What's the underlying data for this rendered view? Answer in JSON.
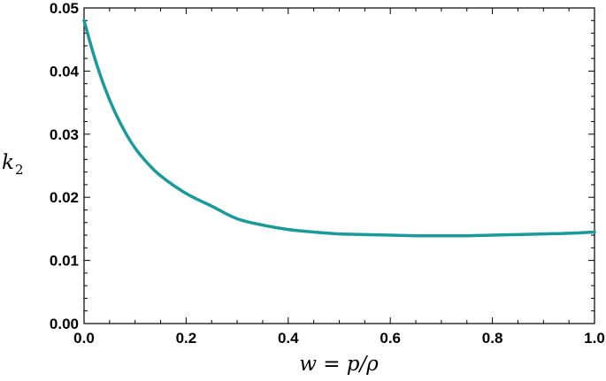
{
  "chart_data": {
    "type": "line",
    "title": "",
    "xlabel": "w = p/ρ",
    "ylabel": "k2",
    "ylabel_base": "k",
    "ylabel_sub": "2",
    "xlim": [
      0.0,
      1.0
    ],
    "ylim": [
      0.0,
      0.05
    ],
    "x_ticks": [
      "0.0",
      "0.2",
      "0.4",
      "0.6",
      "0.8",
      "1.0"
    ],
    "x_tick_values": [
      0.0,
      0.2,
      0.4,
      0.6,
      0.8,
      1.0
    ],
    "y_ticks": [
      "0.00",
      "0.01",
      "0.02",
      "0.03",
      "0.04",
      "0.05"
    ],
    "y_tick_values": [
      0.0,
      0.01,
      0.02,
      0.03,
      0.04,
      0.05
    ],
    "grid": false,
    "legend": "none",
    "series": [
      {
        "color": "#1a9a9a",
        "x": [
          0.0,
          0.02,
          0.04,
          0.06,
          0.08,
          0.1,
          0.12,
          0.15,
          0.2,
          0.25,
          0.3,
          0.35,
          0.4,
          0.45,
          0.5,
          0.55,
          0.6,
          0.65,
          0.7,
          0.75,
          0.8,
          0.85,
          0.9,
          0.95,
          1.0
        ],
        "y": [
          0.048,
          0.0423,
          0.0375,
          0.0336,
          0.0304,
          0.0278,
          0.0258,
          0.0234,
          0.0206,
          0.0186,
          0.0166,
          0.0156,
          0.0149,
          0.0145,
          0.0142,
          0.0141,
          0.014,
          0.0139,
          0.0139,
          0.0139,
          0.014,
          0.0141,
          0.0142,
          0.0143,
          0.0145
        ]
      }
    ]
  }
}
